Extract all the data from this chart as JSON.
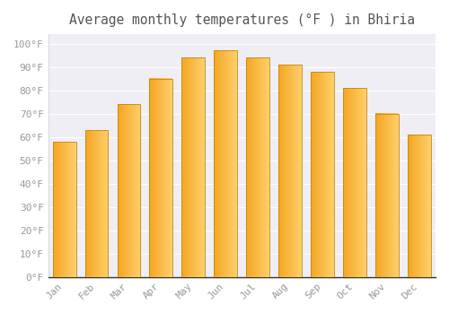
{
  "title": "Average monthly temperatures (°F ) in Bhiria",
  "months": [
    "Jan",
    "Feb",
    "Mar",
    "Apr",
    "May",
    "Jun",
    "Jul",
    "Aug",
    "Sep",
    "Oct",
    "Nov",
    "Dec"
  ],
  "values": [
    58,
    63,
    74,
    85,
    94,
    97,
    94,
    91,
    88,
    81,
    70,
    61
  ],
  "bar_color_left": "#F5A623",
  "bar_color_right": "#FDD06A",
  "bar_edge_color": "#C8850A",
  "background_color": "#FFFFFF",
  "plot_bg_color": "#F0EEF5",
  "grid_color": "#FFFFFF",
  "yticks": [
    0,
    10,
    20,
    30,
    40,
    50,
    60,
    70,
    80,
    90,
    100
  ],
  "ylim": [
    0,
    104
  ],
  "title_fontsize": 10.5,
  "tick_fontsize": 8,
  "font_family": "monospace"
}
